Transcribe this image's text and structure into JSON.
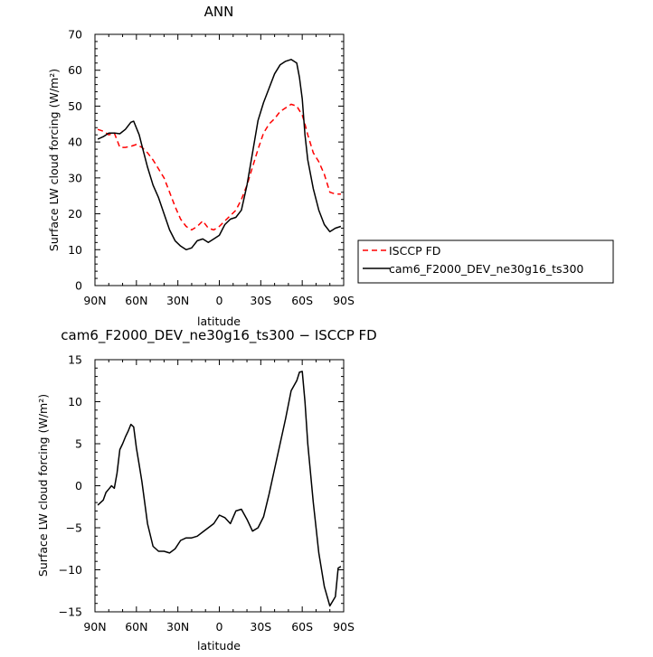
{
  "chart_data": [
    {
      "type": "line",
      "title": "ANN",
      "xlabel": "latitude",
      "ylabel": "Surface LW cloud forcing (W/m²)",
      "xlim": [
        90,
        -90
      ],
      "ylim": [
        0,
        70
      ],
      "x_ticks": [
        90,
        60,
        30,
        0,
        -30,
        -60,
        -90
      ],
      "x_tick_labels": [
        "90N",
        "60N",
        "30N",
        "0",
        "30S",
        "60S",
        "90S"
      ],
      "y_ticks": [
        0,
        10,
        20,
        30,
        40,
        50,
        60,
        70
      ],
      "y_tick_labels": [
        "0",
        "10",
        "20",
        "30",
        "40",
        "50",
        "60",
        "70"
      ],
      "legend_position": "right",
      "series": [
        {
          "name": "ISCCP FD",
          "color": "#ff0000",
          "dash": "dashed",
          "x": [
            88,
            84,
            80,
            76,
            72,
            68,
            64,
            60,
            56,
            52,
            48,
            44,
            40,
            36,
            32,
            28,
            24,
            20,
            16,
            12,
            8,
            4,
            0,
            -4,
            -8,
            -12,
            -16,
            -20,
            -24,
            -28,
            -32,
            -36,
            -40,
            -44,
            -48,
            -52,
            -56,
            -60,
            -62,
            -64,
            -68,
            -72,
            -76,
            -80,
            -84,
            -88
          ],
          "y": [
            43.5,
            43,
            42,
            42.5,
            38.5,
            38.5,
            38.8,
            39.3,
            38.5,
            37,
            35,
            32.5,
            30,
            26,
            22,
            18.5,
            16.5,
            15.5,
            16.5,
            18,
            16,
            15.5,
            16.5,
            18,
            19.5,
            21,
            24,
            28,
            33,
            38,
            42.5,
            45,
            46.5,
            48.5,
            49.5,
            50.5,
            50,
            47.5,
            45,
            42,
            37,
            34.5,
            31,
            26,
            25.5,
            25.5
          ]
        },
        {
          "name": "cam6_F2000_DEV_ne30g16_ts300",
          "color": "#000000",
          "dash": "solid",
          "x": [
            88,
            84,
            80,
            76,
            72,
            68,
            64,
            62,
            58,
            56,
            52,
            48,
            44,
            40,
            36,
            32,
            28,
            24,
            20,
            16,
            12,
            8,
            4,
            0,
            -4,
            -8,
            -12,
            -16,
            -20,
            -24,
            -28,
            -32,
            -36,
            -40,
            -44,
            -48,
            -52,
            -56,
            -58,
            -60,
            -62,
            -64,
            -68,
            -72,
            -76,
            -80,
            -84,
            -88
          ],
          "y": [
            40.8,
            41.5,
            42.5,
            42.5,
            42.3,
            43.5,
            45.5,
            45.8,
            42,
            39,
            33,
            28,
            24.5,
            20,
            15.5,
            12.5,
            11,
            10,
            10.5,
            12.5,
            13,
            12,
            13,
            14,
            17,
            18.5,
            19,
            21,
            28,
            37,
            46,
            51,
            55,
            59,
            61.5,
            62.5,
            63,
            62,
            58,
            52,
            42,
            35,
            27,
            21,
            17,
            15,
            16,
            16.5
          ]
        }
      ]
    },
    {
      "type": "line",
      "title": "cam6_F2000_DEV_ne30g16_ts300 − ISCCP FD",
      "xlabel": "latitude",
      "ylabel": "Surface LW cloud forcing (W/m²)",
      "xlim": [
        90,
        -90
      ],
      "ylim": [
        -15,
        15
      ],
      "x_ticks": [
        90,
        60,
        30,
        0,
        -30,
        -60,
        -90
      ],
      "x_tick_labels": [
        "90N",
        "60N",
        "30N",
        "0",
        "30S",
        "60S",
        "90S"
      ],
      "y_ticks": [
        -15,
        -10,
        -5,
        0,
        5,
        10,
        15
      ],
      "y_tick_labels": [
        "−15",
        "−10",
        "−5",
        "0",
        "5",
        "10",
        "15"
      ],
      "series": [
        {
          "color": "#000000",
          "dash": "solid",
          "x": [
            88,
            84,
            82,
            80,
            78,
            76,
            74,
            72,
            70,
            68,
            66,
            64,
            62,
            60,
            58,
            56,
            52,
            48,
            44,
            40,
            36,
            32,
            28,
            24,
            20,
            16,
            12,
            8,
            4,
            0,
            -4,
            -8,
            -12,
            -16,
            -20,
            -24,
            -28,
            -32,
            -36,
            -40,
            -44,
            -48,
            -52,
            -56,
            -58,
            -60,
            -62,
            -64,
            -68,
            -72,
            -76,
            -80,
            -84,
            -86,
            -88
          ],
          "y": [
            -2.3,
            -1.7,
            -0.8,
            -0.4,
            0,
            -0.3,
            1.5,
            4.3,
            5,
            5.8,
            6.5,
            7.3,
            7,
            4.5,
            2.5,
            0.5,
            -4.5,
            -7.2,
            -7.8,
            -7.8,
            -8,
            -7.5,
            -6.5,
            -6.2,
            -6.2,
            -6.0,
            -5.5,
            -5,
            -4.5,
            -3.5,
            -3.8,
            -4.5,
            -3,
            -2.8,
            -4,
            -5.4,
            -5,
            -3.7,
            -1,
            2,
            5,
            8,
            11.3,
            12.5,
            13.5,
            13.6,
            10,
            5,
            -2,
            -8,
            -12,
            -14.3,
            -13.2,
            -9.8,
            -9.6
          ]
        }
      ]
    }
  ]
}
